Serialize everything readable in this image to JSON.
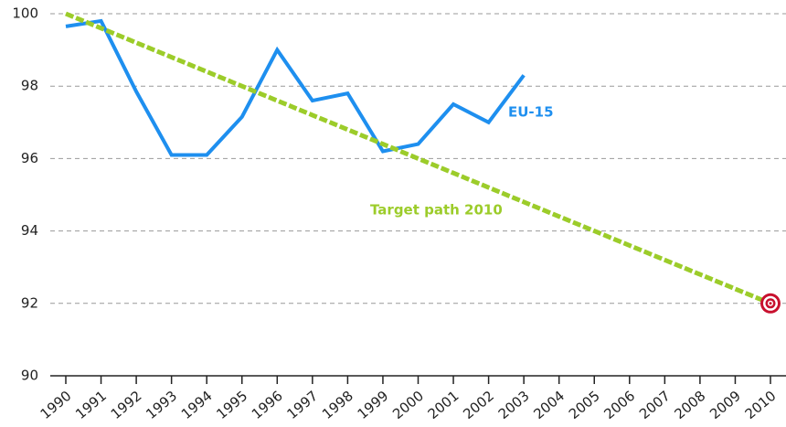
{
  "chart_data": {
    "type": "line",
    "categories": [
      "1990",
      "1991",
      "1992",
      "1993",
      "1994",
      "1995",
      "1996",
      "1997",
      "1998",
      "1999",
      "2000",
      "2001",
      "2002",
      "2003",
      "2004",
      "2005",
      "2006",
      "2007",
      "2008",
      "2009",
      "2010"
    ],
    "series": [
      {
        "name": "EU-15",
        "color": "#1e8fef",
        "values": [
          99.65,
          99.8,
          97.85,
          96.1,
          96.1,
          97.15,
          99.0,
          97.6,
          97.8,
          96.2,
          96.4,
          97.5,
          97.0,
          98.3,
          null,
          null,
          null,
          null,
          null,
          null,
          null
        ]
      },
      {
        "name": "Target path 2010",
        "color": "#9ccc2a",
        "values": [
          100,
          99.6,
          99.2,
          98.8,
          98.4,
          98,
          97.6,
          97.2,
          96.8,
          96.4,
          96,
          95.6,
          95.2,
          94.8,
          94.4,
          94,
          93.6,
          93.2,
          92.8,
          92.4,
          92
        ]
      }
    ],
    "ylim": [
      90,
      100
    ],
    "yticks": [
      90,
      92,
      94,
      96,
      98,
      100
    ],
    "grid": true
  }
}
